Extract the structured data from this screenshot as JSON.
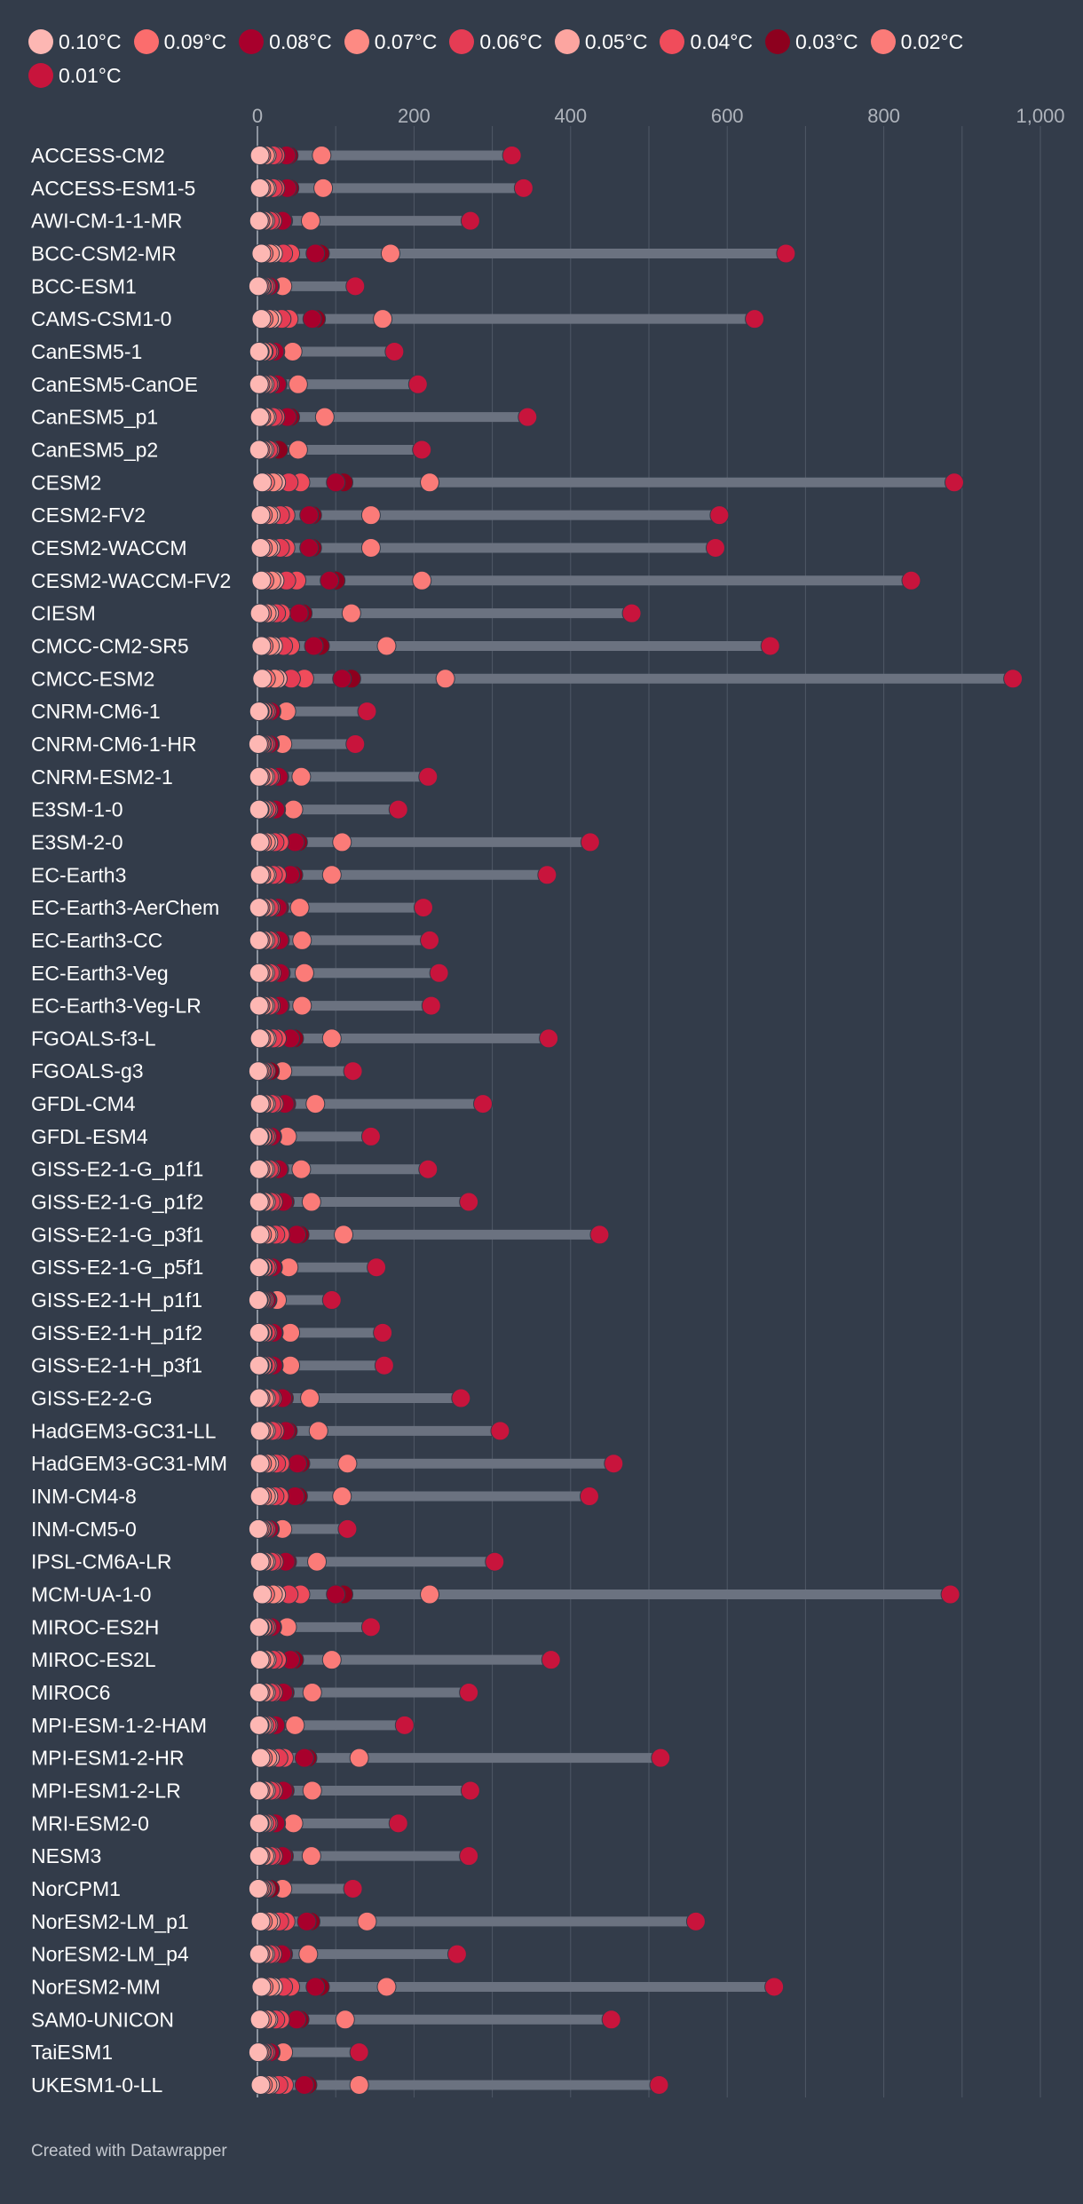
{
  "chart_data": {
    "type": "dot-range",
    "title": "",
    "xlabel": "",
    "ylabel": "",
    "xlim": [
      0,
      1000
    ],
    "xticks": [
      0,
      200,
      400,
      600,
      800,
      1000
    ],
    "xtick_labels": [
      "0",
      "200",
      "400",
      "600",
      "800",
      "1,000"
    ],
    "grid": true,
    "legend_position": "top",
    "series": [
      {
        "name": "0.10°C",
        "color": "#fdb7b3"
      },
      {
        "name": "0.09°C",
        "color": "#fb6d6d"
      },
      {
        "name": "0.08°C",
        "color": "#a8002c"
      },
      {
        "name": "0.07°C",
        "color": "#fd8a83"
      },
      {
        "name": "0.06°C",
        "color": "#e53c54"
      },
      {
        "name": "0.05°C",
        "color": "#fca5a0"
      },
      {
        "name": "0.04°C",
        "color": "#f04c5b"
      },
      {
        "name": "0.03°C",
        "color": "#8d001e"
      },
      {
        "name": "0.02°C",
        "color": "#fb7b78"
      },
      {
        "name": "0.01°C",
        "color": "#c8143c"
      }
    ],
    "categories": [
      {
        "model": "ACCESS-CM2",
        "values": [
          3,
          5,
          37,
          10,
          20,
          12,
          23,
          40,
          82,
          325
        ]
      },
      {
        "model": "ACCESS-ESM1-5",
        "values": [
          3,
          5,
          38,
          10,
          20,
          12,
          23,
          41,
          84,
          340
        ]
      },
      {
        "model": "AWI-CM-1-1-MR",
        "values": [
          2,
          4,
          32,
          8,
          16,
          10,
          19,
          33,
          68,
          272
        ]
      },
      {
        "model": "BCC-CSM2-MR",
        "values": [
          5,
          8,
          74,
          16,
          33,
          20,
          42,
          80,
          170,
          675
        ]
      },
      {
        "model": "BCC-ESM1",
        "values": [
          1,
          3,
          15,
          5,
          9,
          6,
          11,
          16,
          32,
          125
        ]
      },
      {
        "model": "CAMS-CSM1-0",
        "values": [
          5,
          8,
          70,
          15,
          31,
          19,
          40,
          75,
          160,
          635
        ]
      },
      {
        "model": "CanESM5-1",
        "values": [
          2,
          3,
          22,
          7,
          13,
          8,
          15,
          23,
          45,
          175
        ]
      },
      {
        "model": "CanESM5-CanOE",
        "values": [
          2,
          4,
          25,
          7,
          14,
          9,
          16,
          26,
          52,
          205
        ]
      },
      {
        "model": "CanESM5_p1",
        "values": [
          3,
          5,
          38,
          10,
          20,
          12,
          23,
          42,
          86,
          345
        ]
      },
      {
        "model": "CanESM5_p2",
        "values": [
          2,
          4,
          27,
          7,
          14,
          9,
          16,
          27,
          52,
          210
        ]
      },
      {
        "model": "CESM2",
        "values": [
          6,
          10,
          100,
          20,
          40,
          24,
          55,
          110,
          220,
          890
        ]
      },
      {
        "model": "CESM2-FV2",
        "values": [
          4,
          7,
          66,
          14,
          29,
          17,
          36,
          70,
          145,
          590
        ]
      },
      {
        "model": "CESM2-WACCM",
        "values": [
          4,
          7,
          66,
          14,
          29,
          17,
          36,
          70,
          145,
          585
        ]
      },
      {
        "model": "CESM2-WACCM-FV2",
        "values": [
          5,
          9,
          92,
          18,
          37,
          22,
          50,
          100,
          210,
          835
        ]
      },
      {
        "model": "CIESM",
        "values": [
          3,
          6,
          53,
          12,
          24,
          15,
          30,
          58,
          120,
          478
        ]
      },
      {
        "model": "CMCC-CM2-SR5",
        "values": [
          5,
          8,
          72,
          16,
          33,
          20,
          42,
          80,
          165,
          655
        ]
      },
      {
        "model": "CMCC-ESM2",
        "values": [
          6,
          11,
          108,
          22,
          43,
          26,
          60,
          120,
          240,
          965
        ]
      },
      {
        "model": "CNRM-CM6-1",
        "values": [
          2,
          3,
          17,
          6,
          10,
          7,
          12,
          18,
          37,
          140
        ]
      },
      {
        "model": "CNRM-CM6-1-HR",
        "values": [
          1,
          3,
          15,
          5,
          9,
          6,
          11,
          16,
          32,
          125
        ]
      },
      {
        "model": "CNRM-ESM2-1",
        "values": [
          2,
          4,
          27,
          8,
          15,
          10,
          17,
          28,
          56,
          218
        ]
      },
      {
        "model": "E3SM-1-0",
        "values": [
          2,
          3,
          23,
          6,
          12,
          8,
          14,
          24,
          46,
          180
        ]
      },
      {
        "model": "E3SM-2-0",
        "values": [
          3,
          6,
          48,
          11,
          22,
          14,
          28,
          52,
          108,
          425
        ]
      },
      {
        "model": "EC-Earth3",
        "values": [
          3,
          5,
          42,
          10,
          20,
          12,
          25,
          46,
          95,
          370
        ]
      },
      {
        "model": "EC-Earth3-AerChem",
        "values": [
          2,
          4,
          26,
          8,
          15,
          10,
          17,
          28,
          54,
          212
        ]
      },
      {
        "model": "EC-Earth3-CC",
        "values": [
          2,
          4,
          28,
          8,
          15,
          10,
          17,
          29,
          57,
          220
        ]
      },
      {
        "model": "EC-Earth3-Veg",
        "values": [
          2,
          4,
          29,
          8,
          16,
          10,
          18,
          30,
          60,
          232
        ]
      },
      {
        "model": "EC-Earth3-Veg-LR",
        "values": [
          2,
          4,
          28,
          8,
          15,
          10,
          17,
          29,
          57,
          222
        ]
      },
      {
        "model": "FGOALS-f3-L",
        "values": [
          3,
          5,
          42,
          10,
          20,
          12,
          25,
          47,
          95,
          372
        ]
      },
      {
        "model": "FGOALS-g3",
        "values": [
          1,
          3,
          16,
          5,
          9,
          6,
          11,
          16,
          32,
          122
        ]
      },
      {
        "model": "GFDL-CM4",
        "values": [
          3,
          5,
          35,
          9,
          18,
          11,
          21,
          37,
          74,
          288
        ]
      },
      {
        "model": "GFDL-ESM4",
        "values": [
          2,
          3,
          18,
          6,
          10,
          7,
          12,
          19,
          38,
          145
        ]
      },
      {
        "model": "GISS-E2-1-G_p1f1",
        "values": [
          2,
          4,
          27,
          8,
          15,
          10,
          17,
          28,
          56,
          218
        ]
      },
      {
        "model": "GISS-E2-1-G_p1f2",
        "values": [
          2,
          4,
          33,
          9,
          17,
          11,
          20,
          35,
          69,
          270
        ]
      },
      {
        "model": "GISS-E2-1-G_p3f1",
        "values": [
          3,
          6,
          50,
          12,
          23,
          14,
          29,
          54,
          110,
          437
        ]
      },
      {
        "model": "GISS-E2-1-G_p5f1",
        "values": [
          2,
          3,
          19,
          6,
          11,
          7,
          13,
          20,
          40,
          152
        ]
      },
      {
        "model": "GISS-E2-1-H_p1f1",
        "values": [
          1,
          2,
          12,
          4,
          7,
          5,
          9,
          13,
          25,
          95
        ]
      },
      {
        "model": "GISS-E2-1-H_p1f2",
        "values": [
          2,
          3,
          20,
          6,
          11,
          7,
          13,
          21,
          42,
          160
        ]
      },
      {
        "model": "GISS-E2-1-H_p3f1",
        "values": [
          2,
          3,
          20,
          6,
          11,
          7,
          13,
          21,
          42,
          162
        ]
      },
      {
        "model": "GISS-E2-2-G",
        "values": [
          2,
          4,
          32,
          9,
          17,
          11,
          19,
          34,
          67,
          260
        ]
      },
      {
        "model": "HadGEM3-GC31-LL",
        "values": [
          3,
          5,
          36,
          9,
          19,
          11,
          22,
          39,
          78,
          310
        ]
      },
      {
        "model": "HadGEM3-GC31-MM",
        "values": [
          3,
          6,
          51,
          12,
          24,
          15,
          29,
          55,
          115,
          455
        ]
      },
      {
        "model": "INM-CM4-8",
        "values": [
          3,
          6,
          48,
          11,
          22,
          14,
          28,
          52,
          108,
          424
        ]
      },
      {
        "model": "INM-CM5-0",
        "values": [
          1,
          3,
          15,
          5,
          9,
          6,
          11,
          16,
          32,
          115
        ]
      },
      {
        "model": "IPSL-CM6A-LR",
        "values": [
          3,
          5,
          36,
          9,
          18,
          11,
          21,
          38,
          76,
          303
        ]
      },
      {
        "model": "MCM-UA-1-0",
        "values": [
          6,
          10,
          100,
          20,
          40,
          24,
          55,
          110,
          220,
          885
        ]
      },
      {
        "model": "MIROC-ES2H",
        "values": [
          2,
          3,
          18,
          6,
          10,
          7,
          12,
          19,
          38,
          145
        ]
      },
      {
        "model": "MIROC-ES2L",
        "values": [
          3,
          5,
          42,
          10,
          20,
          12,
          25,
          47,
          95,
          375
        ]
      },
      {
        "model": "MIROC6",
        "values": [
          2,
          4,
          33,
          9,
          17,
          11,
          20,
          35,
          70,
          270
        ]
      },
      {
        "model": "MPI-ESM-1-2-HAM",
        "values": [
          2,
          3,
          23,
          6,
          12,
          8,
          14,
          24,
          48,
          188
        ]
      },
      {
        "model": "MPI-ESM1-2-HR",
        "values": [
          4,
          7,
          60,
          13,
          27,
          16,
          34,
          64,
          130,
          515
        ]
      },
      {
        "model": "MPI-ESM1-2-LR",
        "values": [
          2,
          4,
          33,
          9,
          17,
          11,
          20,
          35,
          70,
          272
        ]
      },
      {
        "model": "MRI-ESM2-0",
        "values": [
          2,
          3,
          23,
          6,
          12,
          8,
          14,
          24,
          46,
          180
        ]
      },
      {
        "model": "NESM3",
        "values": [
          2,
          4,
          32,
          9,
          17,
          11,
          20,
          34,
          69,
          270
        ]
      },
      {
        "model": "NorCPM1",
        "values": [
          1,
          3,
          16,
          5,
          9,
          6,
          11,
          16,
          32,
          122
        ]
      },
      {
        "model": "NorESM2-LM_p1",
        "values": [
          4,
          7,
          63,
          14,
          28,
          17,
          36,
          68,
          140,
          560
        ]
      },
      {
        "model": "NorESM2-LM_p4",
        "values": [
          2,
          4,
          31,
          8,
          16,
          10,
          19,
          33,
          65,
          255
        ]
      },
      {
        "model": "NorESM2-MM",
        "values": [
          5,
          8,
          74,
          16,
          33,
          20,
          42,
          80,
          165,
          660
        ]
      },
      {
        "model": "SAM0-UNICON",
        "values": [
          3,
          6,
          50,
          12,
          23,
          14,
          29,
          54,
          112,
          452
        ]
      },
      {
        "model": "TaiESM1",
        "values": [
          1,
          3,
          16,
          5,
          9,
          6,
          11,
          17,
          33,
          130
        ]
      },
      {
        "model": "UKESM1-0-LL",
        "values": [
          4,
          7,
          60,
          13,
          27,
          16,
          34,
          64,
          130,
          513
        ]
      }
    ]
  },
  "footer": {
    "credit": "Created with Datawrapper"
  }
}
